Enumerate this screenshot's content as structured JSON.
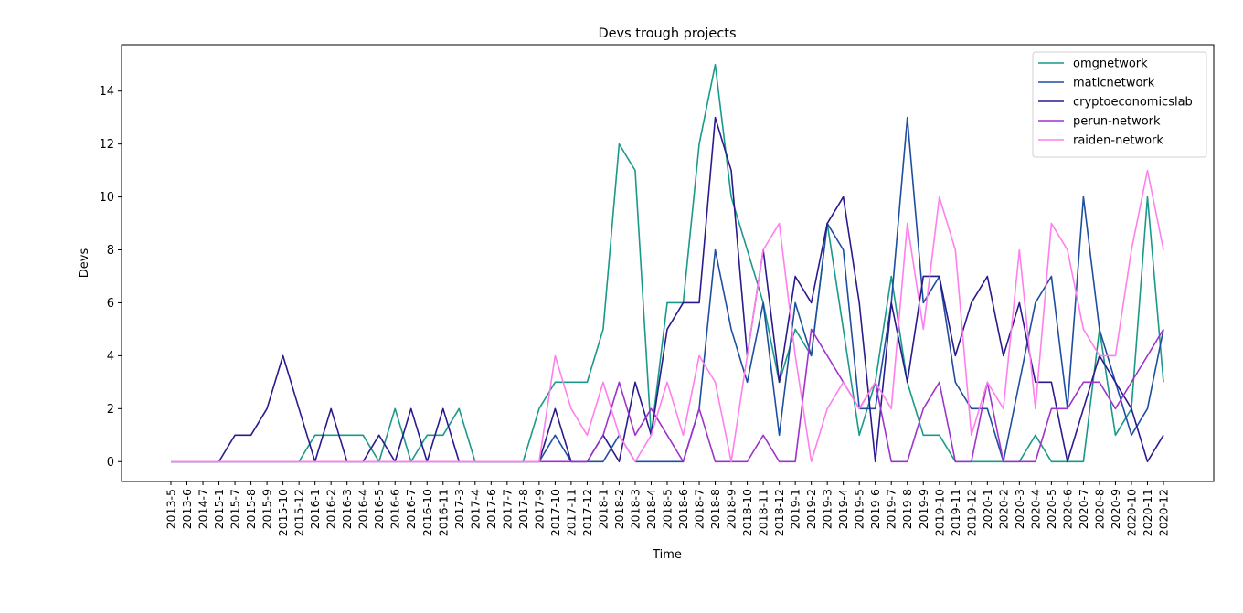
{
  "chart_data": {
    "type": "line",
    "title": "Devs trough projects",
    "xlabel": "Time",
    "ylabel": "Devs",
    "ylim": [
      -0.75,
      15.75
    ],
    "yticks": [
      0,
      2,
      4,
      6,
      8,
      10,
      12,
      14
    ],
    "legend_position": "top-right",
    "grid": false,
    "categories": [
      "2013-5",
      "2013-6",
      "2014-7",
      "2015-1",
      "2015-7",
      "2015-8",
      "2015-9",
      "2015-10",
      "2015-12",
      "2016-1",
      "2016-2",
      "2016-3",
      "2016-4",
      "2016-5",
      "2016-6",
      "2016-7",
      "2016-10",
      "2016-11",
      "2017-3",
      "2017-4",
      "2017-6",
      "2017-7",
      "2017-8",
      "2017-9",
      "2017-10",
      "2017-11",
      "2017-12",
      "2018-1",
      "2018-2",
      "2018-3",
      "2018-4",
      "2018-5",
      "2018-6",
      "2018-7",
      "2018-8",
      "2018-9",
      "2018-10",
      "2018-11",
      "2018-12",
      "2019-1",
      "2019-2",
      "2019-3",
      "2019-4",
      "2019-5",
      "2019-6",
      "2019-7",
      "2019-8",
      "2019-9",
      "2019-10",
      "2019-11",
      "2019-12",
      "2020-1",
      "2020-2",
      "2020-3",
      "2020-4",
      "2020-5",
      "2020-6",
      "2020-7",
      "2020-8",
      "2020-9",
      "2020-10",
      "2020-11",
      "2020-12"
    ],
    "series": [
      {
        "name": "omgnetwork",
        "color": "#1a9988",
        "values": [
          0,
          0,
          0,
          0,
          0,
          0,
          0,
          0,
          0,
          1,
          1,
          1,
          1,
          0,
          2,
          0,
          1,
          1,
          2,
          0,
          0,
          0,
          0,
          2,
          3,
          3,
          3,
          5,
          12,
          11,
          1,
          6,
          6,
          12,
          15,
          10,
          8,
          6,
          3,
          5,
          4,
          9,
          5,
          1,
          3,
          7,
          3,
          1,
          1,
          0,
          0,
          0,
          0,
          0,
          1,
          0,
          0,
          0,
          5,
          1,
          2,
          10,
          3
        ]
      },
      {
        "name": "maticnetwork",
        "color": "#1f4ea1",
        "values": [
          0,
          0,
          0,
          0,
          0,
          0,
          0,
          0,
          0,
          0,
          0,
          0,
          0,
          0,
          0,
          0,
          0,
          0,
          0,
          0,
          0,
          0,
          0,
          0,
          1,
          0,
          0,
          0,
          1,
          0,
          0,
          0,
          0,
          2,
          8,
          5,
          3,
          6,
          1,
          6,
          4,
          9,
          8,
          2,
          2,
          6,
          13,
          6,
          7,
          3,
          2,
          2,
          0,
          3,
          6,
          7,
          2,
          10,
          5,
          3,
          1,
          2,
          5
        ]
      },
      {
        "name": "cryptoeconomicslab",
        "color": "#2a1a8e",
        "values": [
          0,
          0,
          0,
          0,
          1,
          1,
          2,
          4,
          2,
          0,
          2,
          0,
          0,
          1,
          0,
          2,
          0,
          2,
          0,
          0,
          0,
          0,
          0,
          0,
          2,
          0,
          0,
          1,
          0,
          3,
          1,
          5,
          6,
          6,
          13,
          11,
          4,
          8,
          3,
          7,
          6,
          9,
          10,
          6,
          0,
          6,
          3,
          7,
          7,
          4,
          6,
          7,
          4,
          6,
          3,
          3,
          0,
          2,
          4,
          3,
          2,
          0,
          1
        ]
      },
      {
        "name": "perun-network",
        "color": "#9e33cc",
        "values": [
          0,
          0,
          0,
          0,
          0,
          0,
          0,
          0,
          0,
          0,
          0,
          0,
          0,
          0,
          0,
          0,
          0,
          0,
          0,
          0,
          0,
          0,
          0,
          0,
          0,
          0,
          0,
          1,
          3,
          1,
          2,
          1,
          0,
          2,
          0,
          0,
          0,
          1,
          0,
          0,
          5,
          4,
          3,
          2,
          3,
          0,
          0,
          2,
          3,
          0,
          0,
          3,
          0,
          0,
          0,
          2,
          2,
          3,
          3,
          2,
          3,
          4,
          5
        ]
      },
      {
        "name": "raiden-network",
        "color": "#ff7fed",
        "values": [
          0,
          0,
          0,
          0,
          0,
          0,
          0,
          0,
          0,
          0,
          0,
          0,
          0,
          0,
          0,
          0,
          0,
          0,
          0,
          0,
          0,
          0,
          0,
          0,
          4,
          2,
          1,
          3,
          1,
          0,
          1,
          3,
          1,
          4,
          3,
          0,
          4,
          8,
          9,
          4,
          0,
          2,
          3,
          2,
          3,
          2,
          9,
          5,
          10,
          8,
          1,
          3,
          2,
          8,
          2,
          9,
          8,
          5,
          4,
          4,
          8,
          11,
          8
        ]
      }
    ]
  }
}
